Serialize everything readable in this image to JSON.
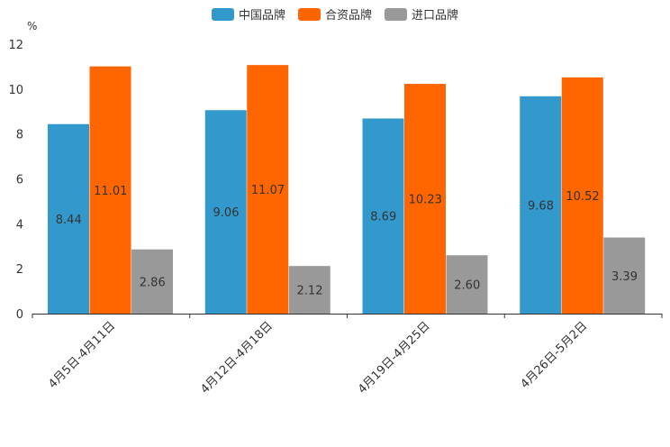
{
  "chart_data": {
    "type": "bar",
    "title": "",
    "unit": "%",
    "categories": [
      "4月5日-4月11日",
      "4月12日-4月18日",
      "4月19日-4月25日",
      "4月26日-5月2日"
    ],
    "series": [
      {
        "name": "中国品牌",
        "color": "#3399cc",
        "values": [
          8.44,
          9.06,
          8.69,
          9.68
        ],
        "labels": [
          "8.44",
          "9.06",
          "8.69",
          "9.68"
        ]
      },
      {
        "name": "合资品牌",
        "color": "#ff6600",
        "values": [
          11.01,
          11.07,
          10.23,
          10.52
        ],
        "labels": [
          "11.01",
          "11.07",
          "10.23",
          "10.52"
        ]
      },
      {
        "name": "进口品牌",
        "color": "#999999",
        "values": [
          2.86,
          2.12,
          2.6,
          3.39
        ],
        "labels": [
          "2.86",
          "2.12",
          "2.60",
          "3.39"
        ]
      }
    ],
    "yticks": [
      "0",
      "2",
      "4",
      "6",
      "8",
      "10",
      "12"
    ],
    "ylim": [
      0,
      12
    ],
    "legend_position": "top-center"
  }
}
